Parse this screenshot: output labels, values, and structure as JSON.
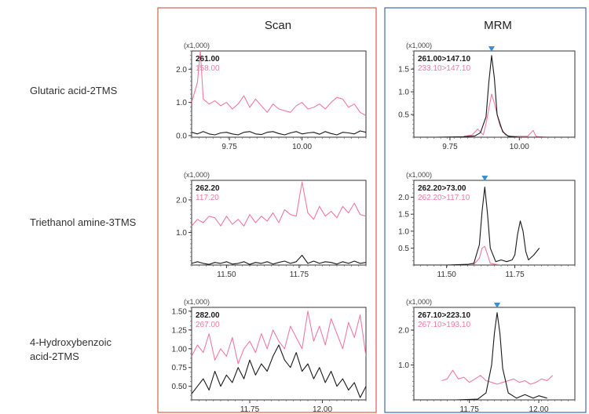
{
  "columns": [
    {
      "label": "Scan",
      "frame_color": "#d9604a"
    },
    {
      "label": "MRM",
      "frame_color": "#3f6cb5"
    }
  ],
  "rows": [
    {
      "label_lines": [
        "Glutaric acid-2TMS"
      ]
    },
    {
      "label_lines": [
        "Triethanol amine-3TMS"
      ]
    },
    {
      "label_lines": [
        "4-Hydroxybenzoic",
        "acid-2TMS"
      ]
    }
  ],
  "colors": {
    "black_trace": "#1a1a1a",
    "pink_trace": "#f07aa0",
    "peak_marker": "#3a8fd6"
  },
  "chart_data": [
    {
      "type": "line",
      "panel": "scan-glutaric",
      "multiplier": "(x1,000)",
      "x_ticks": [
        9.75,
        10.0
      ],
      "x_tick_labels": [
        "9.75",
        "10.00"
      ],
      "xlim": [
        9.62,
        10.22
      ],
      "y_ticks": [
        0.0,
        1.0,
        2.0
      ],
      "y_tick_labels": [
        "0.0",
        "1.0",
        "2.0"
      ],
      "ylim": [
        -0.05,
        2.55
      ],
      "series": [
        {
          "name": "261.00",
          "color": "#1a1a1a",
          "x": [
            9.62,
            9.64,
            9.66,
            9.68,
            9.7,
            9.72,
            9.74,
            9.76,
            9.78,
            9.8,
            9.82,
            9.84,
            9.86,
            9.88,
            9.9,
            9.92,
            9.94,
            9.96,
            9.98,
            10.0,
            10.02,
            10.04,
            10.06,
            10.08,
            10.1,
            10.12,
            10.14,
            10.16,
            10.18,
            10.2,
            10.22
          ],
          "y": [
            0.1,
            0.05,
            0.12,
            0.05,
            0.02,
            0.08,
            0.1,
            0.05,
            0.02,
            0.1,
            0.12,
            0.05,
            0.03,
            0.1,
            0.12,
            0.06,
            0.02,
            0.08,
            0.12,
            0.05,
            0.08,
            0.1,
            0.04,
            0.12,
            0.06,
            0.02,
            0.1,
            0.08,
            0.05,
            0.14,
            0.1
          ]
        },
        {
          "name": "158.00",
          "color": "#f07aa0",
          "x": [
            9.62,
            9.64,
            9.65,
            9.66,
            9.68,
            9.7,
            9.72,
            9.74,
            9.76,
            9.78,
            9.8,
            9.82,
            9.84,
            9.86,
            9.88,
            9.9,
            9.92,
            9.94,
            9.96,
            9.98,
            10.0,
            10.02,
            10.04,
            10.06,
            10.08,
            10.1,
            10.12,
            10.14,
            10.16,
            10.18,
            10.2,
            10.22
          ],
          "y": [
            1.0,
            1.6,
            2.55,
            1.1,
            0.95,
            1.05,
            0.9,
            1.0,
            0.8,
            0.95,
            1.2,
            0.85,
            1.1,
            0.9,
            0.7,
            0.95,
            0.8,
            0.75,
            0.7,
            0.9,
            1.0,
            0.8,
            0.85,
            0.95,
            0.8,
            1.0,
            1.15,
            1.1,
            0.85,
            0.95,
            0.7,
            0.6
          ]
        }
      ]
    },
    {
      "type": "line",
      "panel": "mrm-glutaric",
      "multiplier": "(x1,000)",
      "x_ticks": [
        9.75,
        10.0
      ],
      "x_tick_labels": [
        "9.75",
        "10.00"
      ],
      "xlim": [
        9.62,
        10.2
      ],
      "y_ticks": [
        0.5,
        1.0,
        1.5
      ],
      "y_tick_labels": [
        "0.5",
        "1.0",
        "1.5"
      ],
      "ylim": [
        0.0,
        1.9
      ],
      "peak_marker_x": 9.9,
      "series": [
        {
          "name": "261.00>147.10",
          "color": "#1a1a1a",
          "x": [
            9.62,
            9.7,
            9.8,
            9.84,
            9.86,
            9.88,
            9.89,
            9.9,
            9.91,
            9.92,
            9.94,
            9.96,
            10.0,
            10.1,
            10.2
          ],
          "y": [
            0.0,
            0.0,
            0.01,
            0.03,
            0.1,
            0.45,
            1.2,
            1.8,
            1.3,
            0.5,
            0.12,
            0.02,
            0.0,
            0.0,
            0.0
          ]
        },
        {
          "name": "233.10>147.10",
          "color": "#f07aa0",
          "x": [
            9.8,
            9.83,
            9.85,
            9.87,
            9.88,
            9.9,
            9.91,
            9.93,
            9.95,
            9.97,
            10.0,
            10.03,
            10.05,
            10.06,
            10.07,
            10.1
          ],
          "y": [
            0.02,
            0.05,
            0.18,
            0.05,
            0.3,
            0.95,
            0.75,
            0.25,
            0.05,
            0.02,
            0.02,
            0.02,
            0.15,
            0.02,
            0.01,
            0.0
          ]
        }
      ]
    },
    {
      "type": "line",
      "panel": "scan-triethanol",
      "multiplier": "(x1,000)",
      "x_ticks": [
        11.5,
        11.75
      ],
      "x_tick_labels": [
        "11.50",
        "11.75"
      ],
      "xlim": [
        11.38,
        11.98
      ],
      "y_ticks": [
        1.0,
        2.0
      ],
      "y_tick_labels": [
        "1.0",
        "2.0"
      ],
      "ylim": [
        0.0,
        2.6
      ],
      "series": [
        {
          "name": "262.20",
          "color": "#1a1a1a",
          "x": [
            11.38,
            11.4,
            11.42,
            11.44,
            11.46,
            11.48,
            11.5,
            11.52,
            11.54,
            11.56,
            11.58,
            11.6,
            11.62,
            11.64,
            11.66,
            11.68,
            11.7,
            11.72,
            11.74,
            11.76,
            11.78,
            11.8,
            11.82,
            11.84,
            11.86,
            11.88,
            11.9,
            11.92,
            11.94,
            11.96,
            11.98
          ],
          "y": [
            0.05,
            0.1,
            0.05,
            0.02,
            0.08,
            0.05,
            0.1,
            0.03,
            0.05,
            0.1,
            0.02,
            0.08,
            0.05,
            0.1,
            0.03,
            0.08,
            0.12,
            0.05,
            0.1,
            0.3,
            0.05,
            0.12,
            0.05,
            0.1,
            0.08,
            0.03,
            0.1,
            0.05,
            0.12,
            0.05,
            0.08
          ]
        },
        {
          "name": "117.20",
          "color": "#f07aa0",
          "x": [
            11.38,
            11.4,
            11.42,
            11.44,
            11.46,
            11.48,
            11.5,
            11.52,
            11.54,
            11.56,
            11.58,
            11.6,
            11.62,
            11.64,
            11.66,
            11.68,
            11.7,
            11.72,
            11.74,
            11.76,
            11.78,
            11.8,
            11.82,
            11.84,
            11.86,
            11.88,
            11.9,
            11.92,
            11.94,
            11.96,
            11.98
          ],
          "y": [
            1.2,
            1.4,
            1.3,
            1.5,
            1.45,
            1.2,
            1.5,
            1.25,
            1.4,
            1.2,
            1.55,
            1.3,
            1.5,
            1.35,
            1.6,
            1.3,
            1.7,
            1.55,
            1.5,
            2.55,
            1.6,
            1.4,
            1.8,
            1.5,
            1.65,
            1.45,
            1.8,
            1.6,
            1.9,
            1.55,
            1.5
          ]
        }
      ]
    },
    {
      "type": "line",
      "panel": "mrm-triethanol",
      "multiplier": "(x1,000)",
      "x_ticks": [
        11.5,
        11.75
      ],
      "x_tick_labels": [
        "11.50",
        "11.75"
      ],
      "xlim": [
        11.38,
        11.97
      ],
      "y_ticks": [
        0.5,
        1.0,
        1.5,
        2.0
      ],
      "y_tick_labels": [
        "0.5",
        "1.0",
        "1.5",
        "2.0"
      ],
      "ylim": [
        0.0,
        2.5
      ],
      "peak_marker_x": 11.64,
      "series": [
        {
          "name": "262.20>73.00",
          "color": "#1a1a1a",
          "x": [
            11.38,
            11.5,
            11.58,
            11.6,
            11.62,
            11.63,
            11.64,
            11.65,
            11.66,
            11.68,
            11.7,
            11.72,
            11.74,
            11.75,
            11.76,
            11.77,
            11.78,
            11.79,
            11.8,
            11.82,
            11.84
          ],
          "y": [
            0.0,
            0.0,
            0.02,
            0.05,
            0.6,
            1.6,
            2.3,
            1.5,
            0.5,
            0.1,
            0.15,
            0.1,
            0.15,
            0.3,
            0.9,
            1.3,
            1.0,
            0.4,
            0.15,
            0.3,
            0.5
          ]
        },
        {
          "name": "262.20>117.10",
          "color": "#f07aa0",
          "x": [
            11.58,
            11.6,
            11.62,
            11.63,
            11.64,
            11.65,
            11.66,
            11.68,
            11.7
          ],
          "y": [
            0.0,
            0.02,
            0.2,
            0.5,
            0.55,
            0.3,
            0.05,
            0.02,
            0.0
          ]
        }
      ]
    },
    {
      "type": "line",
      "panel": "scan-hydroxybenzoic",
      "multiplier": "(x1,000)",
      "x_ticks": [
        11.75,
        12.0
      ],
      "x_tick_labels": [
        "11.75",
        "12.00"
      ],
      "xlim": [
        11.55,
        12.15
      ],
      "y_ticks": [
        0.5,
        0.75,
        1.0,
        1.25,
        1.5
      ],
      "y_tick_labels": [
        "0.50",
        "0.75",
        "1.00",
        "1.25",
        "1.50"
      ],
      "ylim": [
        0.32,
        1.55
      ],
      "series": [
        {
          "name": "282.00",
          "color": "#1a1a1a",
          "x": [
            11.55,
            11.57,
            11.59,
            11.61,
            11.63,
            11.65,
            11.67,
            11.69,
            11.71,
            11.73,
            11.75,
            11.77,
            11.79,
            11.81,
            11.83,
            11.85,
            11.87,
            11.89,
            11.91,
            11.93,
            11.95,
            11.97,
            11.99,
            12.01,
            12.03,
            12.05,
            12.07,
            12.09,
            12.11,
            12.13,
            12.15
          ],
          "y": [
            0.4,
            0.5,
            0.6,
            0.45,
            0.7,
            0.5,
            0.65,
            0.55,
            0.75,
            0.6,
            0.85,
            0.65,
            0.8,
            0.7,
            0.9,
            1.05,
            0.85,
            0.75,
            0.95,
            0.7,
            0.8,
            0.6,
            0.75,
            0.55,
            0.7,
            0.5,
            0.6,
            0.45,
            0.55,
            0.35,
            0.5
          ]
        },
        {
          "name": "267.00",
          "color": "#f07aa0",
          "x": [
            11.55,
            11.57,
            11.59,
            11.61,
            11.63,
            11.65,
            11.67,
            11.69,
            11.71,
            11.73,
            11.75,
            11.77,
            11.79,
            11.81,
            11.83,
            11.85,
            11.87,
            11.89,
            11.91,
            11.93,
            11.95,
            11.97,
            11.99,
            12.01,
            12.03,
            12.05,
            12.07,
            12.09,
            12.11,
            12.13,
            12.15
          ],
          "y": [
            0.9,
            1.05,
            0.95,
            1.2,
            0.85,
            1.0,
            0.9,
            1.15,
            0.8,
            1.0,
            1.1,
            0.95,
            1.2,
            1.0,
            1.25,
            1.1,
            1.0,
            1.3,
            1.15,
            1.0,
            1.5,
            1.1,
            1.3,
            1.05,
            1.4,
            1.2,
            1.0,
            1.35,
            1.15,
            1.45,
            0.9
          ]
        }
      ]
    },
    {
      "type": "line",
      "panel": "mrm-hydroxybenzoic",
      "multiplier": "(x1,000)",
      "x_ticks": [
        11.75,
        12.0
      ],
      "x_tick_labels": [
        "11.75",
        "12.00"
      ],
      "xlim": [
        11.55,
        12.13
      ],
      "y_ticks": [
        1.0,
        2.0
      ],
      "y_tick_labels": [
        "1.0",
        "2.0"
      ],
      "ylim": [
        0.0,
        2.65
      ],
      "peak_marker_x": 11.85,
      "series": [
        {
          "name": "267.10>223.10",
          "color": "#1a1a1a",
          "x": [
            11.55,
            11.7,
            11.78,
            11.81,
            11.83,
            11.84,
            11.85,
            11.86,
            11.87,
            11.89,
            11.92,
            11.95,
            11.98,
            12.0,
            12.03
          ],
          "y": [
            0.0,
            0.0,
            0.02,
            0.2,
            1.0,
            1.9,
            2.5,
            1.9,
            0.9,
            0.2,
            0.05,
            0.15,
            0.05,
            0.12,
            0.05
          ]
        },
        {
          "name": "267.10>193.10",
          "color": "#f07aa0",
          "x": [
            11.65,
            11.67,
            11.69,
            11.71,
            11.73,
            11.75,
            11.77,
            11.79,
            11.81,
            11.83,
            11.85,
            11.87,
            11.89,
            11.91,
            11.93,
            11.95,
            11.97,
            11.99,
            12.01,
            12.03,
            12.05
          ],
          "y": [
            0.55,
            0.6,
            0.85,
            0.6,
            0.65,
            0.5,
            0.6,
            0.7,
            0.55,
            0.5,
            0.45,
            0.5,
            0.55,
            0.6,
            0.5,
            0.55,
            0.45,
            0.5,
            0.6,
            0.55,
            0.7
          ]
        }
      ]
    }
  ]
}
